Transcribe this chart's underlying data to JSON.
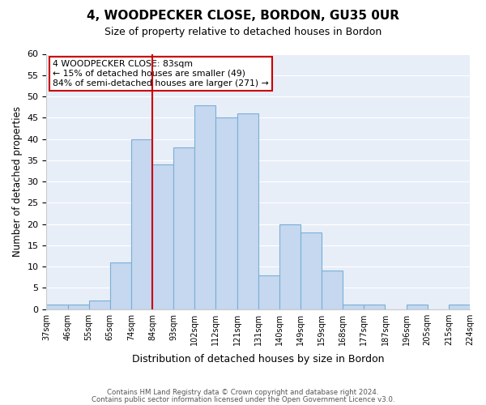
{
  "title": "4, WOODPECKER CLOSE, BORDON, GU35 0UR",
  "subtitle": "Size of property relative to detached houses in Bordon",
  "xlabel": "Distribution of detached houses by size in Bordon",
  "ylabel": "Number of detached properties",
  "bin_labels": [
    "37sqm",
    "46sqm",
    "55sqm",
    "65sqm",
    "74sqm",
    "84sqm",
    "93sqm",
    "102sqm",
    "112sqm",
    "121sqm",
    "131sqm",
    "140sqm",
    "149sqm",
    "159sqm",
    "168sqm",
    "177sqm",
    "187sqm",
    "196sqm",
    "205sqm",
    "215sqm",
    "224sqm"
  ],
  "bar_heights": [
    1,
    1,
    2,
    11,
    40,
    34,
    38,
    48,
    45,
    46,
    8,
    20,
    18,
    9,
    1,
    1,
    0,
    1,
    0,
    1
  ],
  "bar_color": "#c5d8f0",
  "bar_edge_color": "#7aafd4",
  "vline_x": 5,
  "vline_color": "#cc0000",
  "annotation_text": "4 WOODPECKER CLOSE: 83sqm\n← 15% of detached houses are smaller (49)\n84% of semi-detached houses are larger (271) →",
  "annotation_box_edge": "#cc0000",
  "ylim": [
    0,
    60
  ],
  "yticks": [
    0,
    5,
    10,
    15,
    20,
    25,
    30,
    35,
    40,
    45,
    50,
    55,
    60
  ],
  "footer_line1": "Contains HM Land Registry data © Crown copyright and database right 2024.",
  "footer_line2": "Contains public sector information licensed under the Open Government Licence v3.0.",
  "background_color": "#e8eef8"
}
